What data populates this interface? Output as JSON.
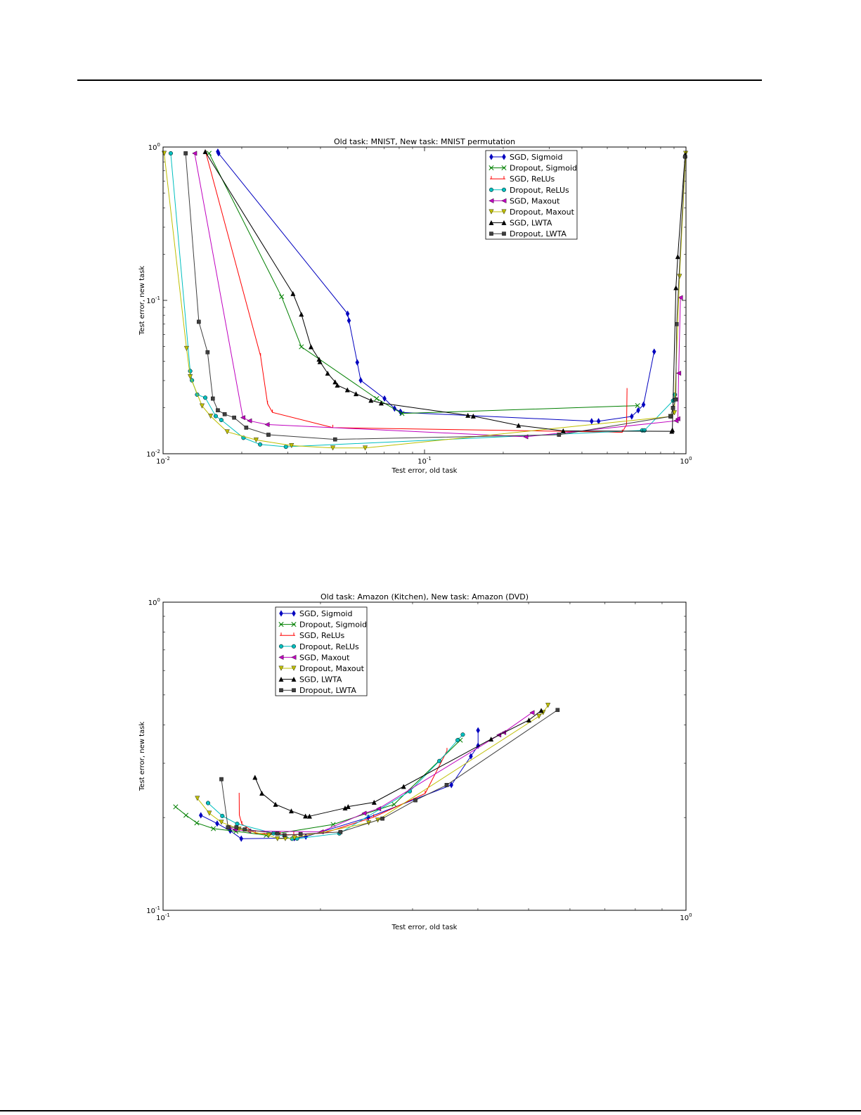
{
  "charts": [
    {
      "chart_data": {
        "type": "line",
        "title": "Old task: MNIST, New task: MNIST permutation",
        "xlabel": "Test error, old task",
        "ylabel": "Test error, new task",
        "xscale": "log",
        "yscale": "log",
        "xlim": [
          0.01,
          1.0
        ],
        "ylim": [
          0.01,
          1.0
        ],
        "xticks": [
          {
            "v": 0.01,
            "b": "10",
            "e": "-2"
          },
          {
            "v": 0.1,
            "b": "10",
            "e": "-1"
          },
          {
            "v": 1.0,
            "b": "10",
            "e": "0"
          }
        ],
        "yticks": [
          {
            "v": 0.01,
            "b": "10",
            "e": "-2"
          },
          {
            "v": 0.1,
            "b": "10",
            "e": "-1"
          },
          {
            "v": 1.0,
            "b": "10",
            "e": "0"
          }
        ],
        "grid": false,
        "legend_position": "top-right",
        "series": [
          {
            "name": "SGD, Sigmoid",
            "color": "#0000bf",
            "marker": "diamond",
            "x": [
              0.0162,
              0.0163,
              0.0508,
              0.0514,
              0.0553,
              0.057,
              0.0703,
              0.0768,
              0.0808,
              0.0813,
              0.4357,
              0.4631,
              0.6202,
              0.6567,
              0.6879,
              0.7557
            ],
            "y": [
              0.9327,
              0.9098,
              0.0818,
              0.0738,
              0.0394,
              0.0301,
              0.0229,
              0.0197,
              0.0188,
              0.0186,
              0.0163,
              0.0163,
              0.0175,
              0.0192,
              0.0209,
              0.0463
            ]
          },
          {
            "name": "Dropout, Sigmoid",
            "color": "#007f00",
            "marker": "x",
            "x": [
              0.015,
              0.0284,
              0.0338,
              0.0656,
              0.082,
              0.653
            ],
            "y": [
              0.9098,
              0.1056,
              0.0498,
              0.0229,
              0.0183,
              0.0206
            ]
          },
          {
            "name": "SGD, ReLUs",
            "color": "#ff0000",
            "marker": "tick",
            "x": [
              0.0146,
              0.0236,
              0.0251,
              0.0262,
              0.0446,
              0.5705,
              0.5927,
              0.595
            ],
            "y": [
              0.9098,
              0.0434,
              0.0212,
              0.0186,
              0.0148,
              0.0138,
              0.0155,
              0.0257
            ]
          },
          {
            "name": "Dropout, ReLUs",
            "color": "#00bfbf",
            "marker": "circle",
            "x": [
              0.0107,
              0.0127,
              0.0129,
              0.0135,
              0.0145,
              0.0159,
              0.0167,
              0.0203,
              0.0235,
              0.0295,
              0.6803,
              0.6935,
              0.893,
              0.9066
            ],
            "y": [
              0.9098,
              0.0346,
              0.0301,
              0.0243,
              0.0232,
              0.0176,
              0.0166,
              0.0127,
              0.0115,
              0.0111,
              0.0142,
              0.0142,
              0.0222,
              0.0243
            ]
          },
          {
            "name": "SGD, Maxout",
            "color": "#bf00bf",
            "marker": "triangle-left",
            "x": [
              0.0132,
              0.0202,
              0.0214,
              0.025,
              0.2438,
              0.9166,
              0.9309,
              0.9379,
              0.9522
            ],
            "y": [
              0.9098,
              0.0172,
              0.0164,
              0.0155,
              0.0129,
              0.0164,
              0.0169,
              0.0335,
              0.1043
            ]
          },
          {
            "name": "Dropout, Maxout",
            "color": "#bfbf00",
            "marker": "triangle-down",
            "x": [
              0.0101,
              0.0123,
              0.0127,
              0.0141,
              0.0152,
              0.0176,
              0.0227,
              0.031,
              0.0446,
              0.0593,
              0.8735,
              0.9029,
              0.9449,
              0.9976
            ],
            "y": [
              0.9098,
              0.0486,
              0.0318,
              0.0205,
              0.0176,
              0.0139,
              0.0123,
              0.0113,
              0.0109,
              0.0109,
              0.0175,
              0.0185,
              0.1434,
              0.9098
            ]
          },
          {
            "name": "SGD, LWTA",
            "color": "#000000",
            "marker": "triangle-up",
            "x": [
              0.0145,
              0.0314,
              0.0338,
              0.0368,
              0.0395,
              0.0398,
              0.0426,
              0.0455,
              0.0464,
              0.0507,
              0.0547,
              0.0624,
              0.0683,
              0.1465,
              0.1536,
              0.2289,
              0.3392,
              0.8824,
              0.887,
              0.9153,
              0.9301,
              0.9922
            ],
            "y": [
              0.9327,
              0.1107,
              0.0812,
              0.0498,
              0.0413,
              0.0398,
              0.0335,
              0.0294,
              0.028,
              0.0261,
              0.0246,
              0.0223,
              0.0214,
              0.0178,
              0.0176,
              0.0153,
              0.0141,
              0.014,
              0.0143,
              0.1209,
              0.1929,
              0.8875
            ]
          },
          {
            "name": "Dropout, LWTA",
            "color": "#3f3f3f",
            "marker": "square",
            "x": [
              0.0122,
              0.0137,
              0.0148,
              0.0155,
              0.0162,
              0.0172,
              0.0187,
              0.0208,
              0.0253,
              0.0455,
              0.3268,
              0.8724,
              0.8919,
              0.9141,
              0.9211,
              0.9922
            ],
            "y": [
              0.9098,
              0.0725,
              0.0459,
              0.0229,
              0.0192,
              0.0181,
              0.0172,
              0.0148,
              0.0133,
              0.0124,
              0.0133,
              0.0175,
              0.0199,
              0.0226,
              0.07,
              0.8659
            ]
          }
        ]
      }
    },
    {
      "chart_data": {
        "type": "line",
        "title": "Old task: Amazon (Kitchen), New task: Amazon (DVD)",
        "xlabel": "Test error, old task",
        "ylabel": "Test error, new task",
        "xscale": "log",
        "yscale": "log",
        "xlim": [
          0.1,
          1.0
        ],
        "ylim": [
          0.1,
          1.0
        ],
        "xticks": [
          {
            "v": 0.1,
            "b": "10",
            "e": "-1"
          },
          {
            "v": 1.0,
            "b": "10",
            "e": "0"
          }
        ],
        "yticks": [
          {
            "v": 0.1,
            "b": "10",
            "e": "-1"
          },
          {
            "v": 1.0,
            "b": "10",
            "e": "0"
          }
        ],
        "grid": false,
        "legend_position": "top-left",
        "series": [
          {
            "name": "SGD, Sigmoid",
            "color": "#0000bf",
            "marker": "diamond",
            "x": [
              0.1181,
              0.1269,
              0.1344,
              0.1411,
              0.1783,
              0.1875,
              0.2468,
              0.3559,
              0.3878,
              0.4003,
              0.4003
            ],
            "y": [
              0.2034,
              0.1912,
              0.1812,
              0.1708,
              0.1715,
              0.1734,
              0.2001,
              0.2551,
              0.3161,
              0.3422,
              0.3836
            ]
          },
          {
            "name": "Dropout, Sigmoid",
            "color": "#007f00",
            "marker": "x",
            "x": [
              0.1057,
              0.1106,
              0.116,
              0.1248,
              0.1378,
              0.1575,
              0.2115,
              0.2766,
              0.3702
            ],
            "y": [
              0.2166,
              0.2034,
              0.1921,
              0.1841,
              0.1804,
              0.1752,
              0.1899,
              0.2207,
              0.3566
            ]
          },
          {
            "name": "SGD, ReLUs",
            "color": "#ff0000",
            "marker": "tick",
            "x": [
              0.1398,
              0.1399,
              0.1415,
              0.1501,
              0.1674,
              0.1778,
              0.2029,
              0.2528,
              0.3171,
              0.3491
            ],
            "y": [
              0.2356,
              0.2039,
              0.1904,
              0.1781,
              0.1762,
              0.1759,
              0.1779,
              0.2007,
              0.2393,
              0.3295
            ]
          },
          {
            "name": "Dropout, ReLUs",
            "color": "#00bfbf",
            "marker": "circle",
            "x": [
              0.1219,
              0.1298,
              0.1386,
              0.1626,
              0.1765,
              0.1804,
              0.2173,
              0.2964,
              0.3376,
              0.3658,
              0.3743
            ],
            "y": [
              0.2229,
              0.2024,
              0.1908,
              0.1778,
              0.1707,
              0.1709,
              0.1776,
              0.2434,
              0.3051,
              0.3566,
              0.3717
            ]
          },
          {
            "name": "SGD, Maxout",
            "color": "#bf00bf",
            "marker": "triangle-left",
            "x": [
              0.1334,
              0.1372,
              0.1458,
              0.2006,
              0.2423,
              0.2584,
              0.4386,
              0.4481,
              0.5078
            ],
            "y": [
              0.1859,
              0.1827,
              0.1809,
              0.1797,
              0.2065,
              0.2136,
              0.3706,
              0.3775,
              0.4381
            ]
          },
          {
            "name": "Dropout, Maxout",
            "color": "#bfbf00",
            "marker": "triangle-down",
            "x": [
              0.1163,
              0.1226,
              0.1293,
              0.1397,
              0.1593,
              0.1655,
              0.1713,
              0.1784,
              0.2473,
              0.2574,
              0.5235,
              0.5331,
              0.5446
            ],
            "y": [
              0.2309,
              0.2066,
              0.1931,
              0.1836,
              0.1752,
              0.1707,
              0.1708,
              0.1719,
              0.1922,
              0.1962,
              0.4263,
              0.4383,
              0.4627
            ]
          },
          {
            "name": "SGD, LWTA",
            "color": "#000000",
            "marker": "triangle-up",
            "x": [
              0.1499,
              0.1545,
              0.1641,
              0.1759,
              0.1872,
              0.1906,
              0.2229,
              0.2259,
              0.2533,
              0.2884,
              0.4239,
              0.5007,
              0.5287
            ],
            "y": [
              0.2701,
              0.2397,
              0.2207,
              0.2101,
              0.2022,
              0.202,
              0.2147,
              0.217,
              0.2241,
              0.2522,
              0.3593,
              0.4143,
              0.4451
            ]
          },
          {
            "name": "Dropout, LWTA",
            "color": "#3f3f3f",
            "marker": "square",
            "x": [
              0.1293,
              0.1331,
              0.1381,
              0.1433,
              0.1654,
              0.1707,
              0.1832,
              0.2184,
              0.2627,
              0.3038,
              0.3486,
              0.5682
            ],
            "y": [
              0.2664,
              0.1859,
              0.1859,
              0.183,
              0.1775,
              0.1752,
              0.1767,
              0.1795,
              0.1984,
              0.2276,
              0.2551,
              0.4468
            ]
          }
        ]
      }
    }
  ]
}
